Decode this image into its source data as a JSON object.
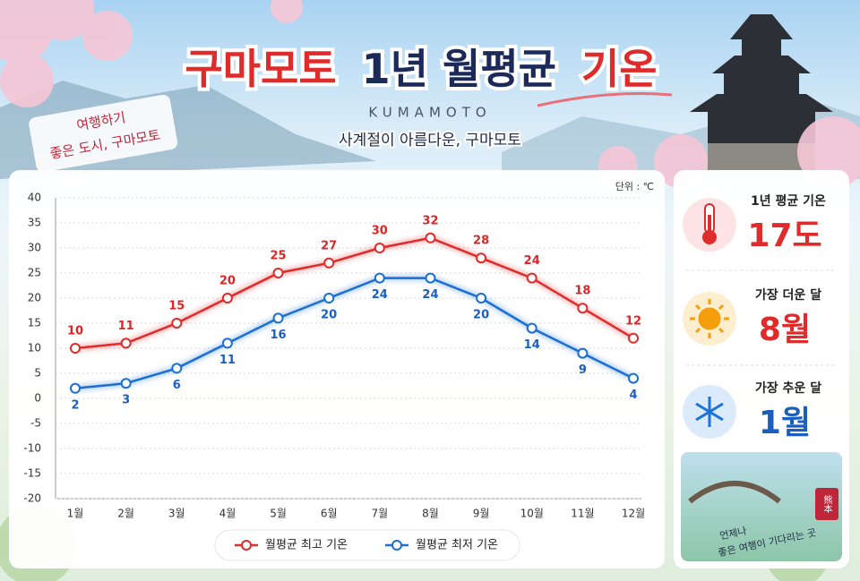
{
  "header": {
    "title": [
      "구마모토",
      "1년 월평균",
      "기온"
    ],
    "subtitle_en": "KUMAMOTO",
    "subtitle": "사계절이 아름다운, 구마모토",
    "sticker": [
      "여행하기",
      "좋은 도시, 구마모토"
    ]
  },
  "chart_data": {
    "type": "line",
    "unit": "단위 : ℃",
    "categories": [
      "1월",
      "2월",
      "3월",
      "4월",
      "5월",
      "6월",
      "7월",
      "8월",
      "9월",
      "10월",
      "11월",
      "12월"
    ],
    "series": [
      {
        "name": "월평균 최고 기온",
        "color": "#e02b2b",
        "values": [
          10,
          11,
          15,
          20,
          25,
          27,
          30,
          32,
          28,
          24,
          18,
          12
        ]
      },
      {
        "name": "월평균 최저 기온",
        "color": "#1a6fd1",
        "values": [
          2,
          3,
          6,
          11,
          16,
          20,
          24,
          24,
          20,
          14,
          9,
          4
        ]
      }
    ],
    "ylim": [
      -20,
      40
    ],
    "yticks": [
      -20,
      -15,
      -10,
      -5,
      0,
      5,
      10,
      15,
      20,
      25,
      30,
      35,
      40
    ],
    "grid": true,
    "legend": "bottom"
  },
  "side": {
    "highlights": [
      {
        "label": "1년 평균 기온",
        "value": "17도"
      },
      {
        "label": "가장 더운 달",
        "value": "8월"
      },
      {
        "label": "가장 추운 달",
        "value": "1월"
      }
    ],
    "seal": "熊本",
    "caption": [
      "언제나",
      "좋은 여행이 기다리는 곳"
    ]
  }
}
